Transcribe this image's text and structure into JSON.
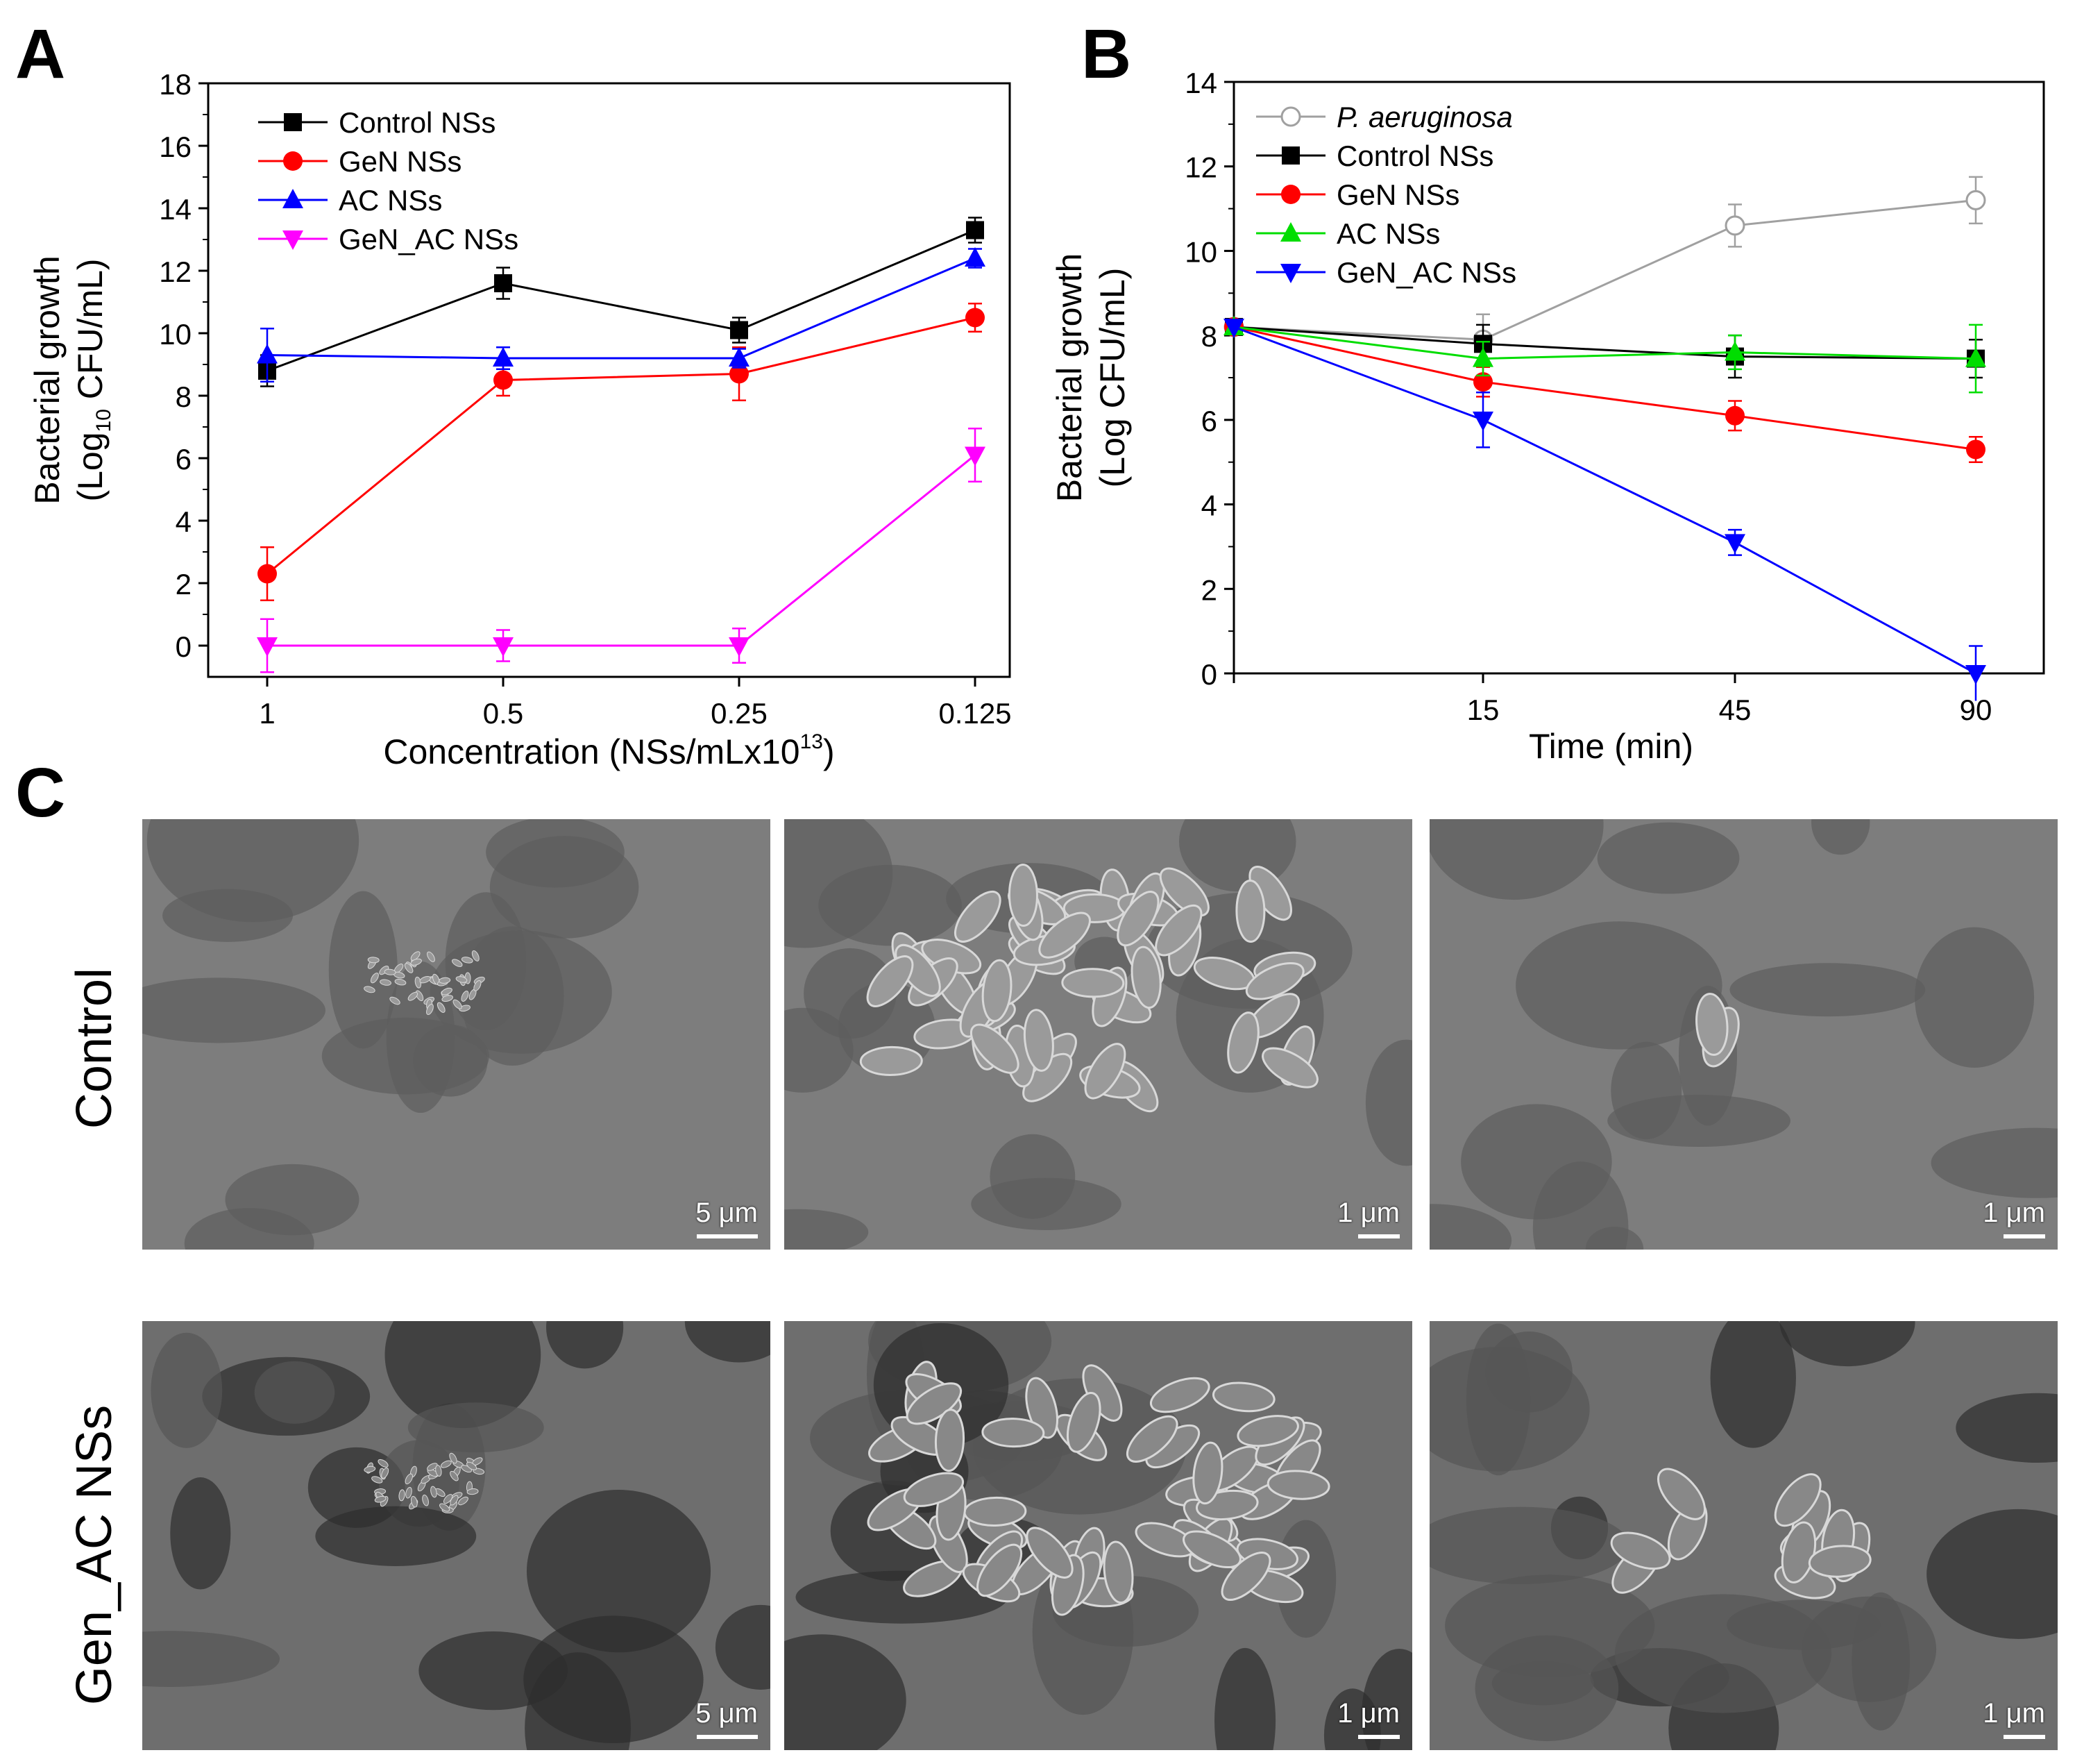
{
  "panels": {
    "a": "A",
    "b": "B",
    "c": "C"
  },
  "chart_data": [
    {
      "id": "chartA",
      "type": "line",
      "xlabel_main": "Concentration (NSs/mLx10",
      "xlabel_sup": "13",
      "xlabel_end": ")",
      "ylabel_line1": "Bacterial growth",
      "ylabel_line2_pre": "(Log",
      "ylabel_line2_sub": "10",
      "ylabel_line2_post": " CFU/mL)",
      "categories": [
        "1",
        "0.5",
        "0.25",
        "0.125"
      ],
      "ylim": [
        -1,
        18
      ],
      "yticks": [
        0,
        2,
        4,
        6,
        8,
        10,
        12,
        14,
        16,
        18
      ],
      "legend_position": "top-left",
      "grid": false,
      "series": [
        {
          "name": "Control  NSs",
          "color": "#000000",
          "marker": "square",
          "values": [
            8.8,
            11.6,
            10.1,
            13.3
          ],
          "errors": [
            0.5,
            0.5,
            0.4,
            0.4
          ]
        },
        {
          "name": "GeN NSs",
          "color": "#ff0000",
          "marker": "circle",
          "values": [
            2.3,
            8.5,
            8.7,
            10.5
          ],
          "errors": [
            0.85,
            0.5,
            0.85,
            0.45
          ]
        },
        {
          "name": "AC NSs",
          "color": "#0000ff",
          "marker": "triangle-up",
          "values": [
            9.3,
            9.2,
            9.2,
            12.4
          ],
          "errors": [
            0.85,
            0.35,
            0.3,
            0.3
          ]
        },
        {
          "name": "GeN_AC NSs",
          "color": "#ff00ff",
          "marker": "triangle-down",
          "values": [
            0,
            0,
            0,
            6.1
          ],
          "errors": [
            0.85,
            0.5,
            0.55,
            0.85
          ]
        }
      ]
    },
    {
      "id": "chartB",
      "type": "line",
      "xlabel": "Time (min)",
      "ylabel_line1": "Bacterial growth",
      "ylabel_line2": "(Log CFU/mL)",
      "x_tick_labels": [
        "15",
        "45",
        "90"
      ],
      "ylim": [
        0,
        14
      ],
      "yticks": [
        0,
        2,
        4,
        6,
        8,
        10,
        12,
        14
      ],
      "legend_position": "top-left",
      "grid": false,
      "series": [
        {
          "name": "P. aeruginosa",
          "italic": true,
          "color": "#a0a0a0",
          "marker": "circle-open",
          "values": [
            8.2,
            7.9,
            10.6,
            11.2
          ],
          "errors": [
            0,
            0.6,
            0.5,
            0.55
          ]
        },
        {
          "name": "Control NSs",
          "color": "#000000",
          "marker": "square",
          "values": [
            8.2,
            7.8,
            7.5,
            7.45
          ],
          "errors": [
            0,
            0.45,
            0.5,
            0.45
          ]
        },
        {
          "name": "GeN NSs",
          "color": "#ff0000",
          "marker": "circle",
          "values": [
            8.2,
            6.9,
            6.1,
            5.3
          ],
          "errors": [
            0,
            0.35,
            0.35,
            0.3
          ]
        },
        {
          "name": "AC NSs",
          "color": "#00dd00",
          "marker": "triangle-up",
          "values": [
            8.2,
            7.45,
            7.6,
            7.45
          ],
          "errors": [
            0,
            0.4,
            0.4,
            0.8
          ]
        },
        {
          "name": "GeN_AC NSs",
          "color": "#0000ff",
          "marker": "triangle-down",
          "values": [
            8.2,
            6.0,
            3.1,
            0
          ],
          "errors": [
            0,
            0.65,
            0.3,
            0.65
          ]
        }
      ]
    }
  ],
  "sem": {
    "row_labels": [
      "Control",
      "Gen_AC NSs"
    ],
    "scale_labels": [
      "5 μm",
      "1 μm",
      "1 μm",
      "5 μm",
      "1 μm",
      "1 μm"
    ]
  }
}
